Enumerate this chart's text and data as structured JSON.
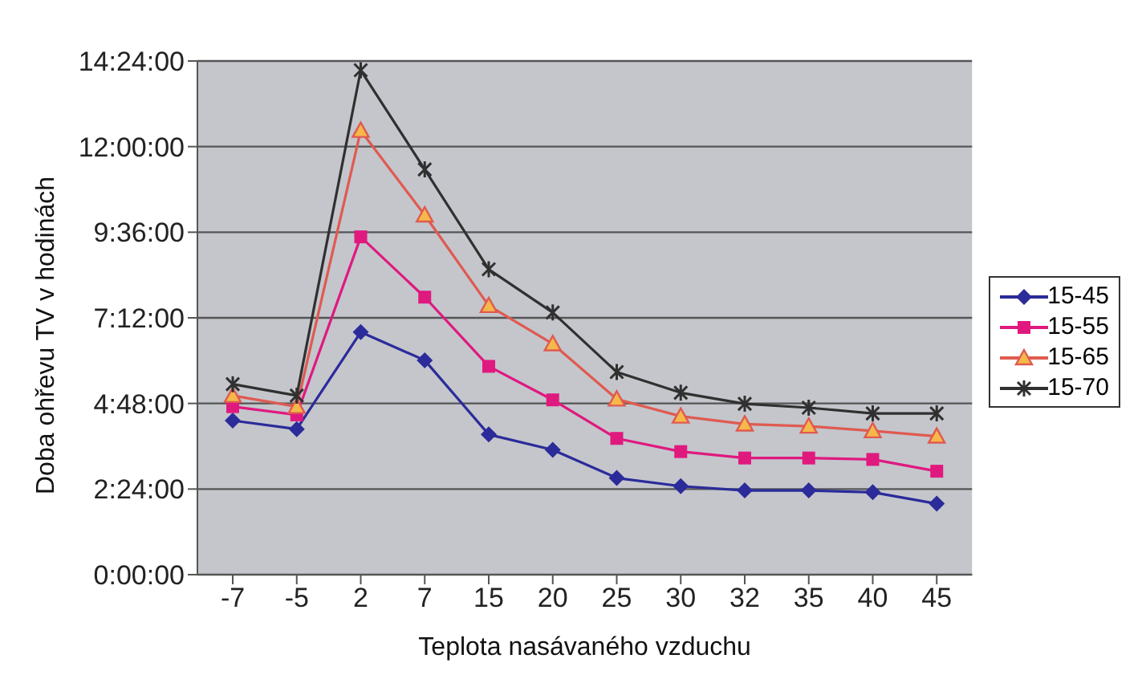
{
  "chart_data": {
    "type": "line",
    "xlabel": "Teplota nasávaného vzduchu",
    "ylabel": "Doba ohřevu TV  v hodinách",
    "categories": [
      "-7",
      "-5",
      "2",
      "7",
      "15",
      "20",
      "25",
      "30",
      "32",
      "35",
      "40",
      "45"
    ],
    "series": [
      {
        "name": "15-45",
        "color": "#2b2b9a",
        "marker": "diamond",
        "values": [
          4.32,
          4.08,
          6.8,
          6.01,
          3.93,
          3.5,
          2.71,
          2.48,
          2.36,
          2.36,
          2.31,
          1.99
        ]
      },
      {
        "name": "15-55",
        "color": "#e0197f",
        "marker": "square",
        "values": [
          4.71,
          4.48,
          9.47,
          7.78,
          5.84,
          4.9,
          3.82,
          3.45,
          3.27,
          3.27,
          3.23,
          2.9
        ]
      },
      {
        "name": "15-65",
        "color": "#e05a50",
        "marker": "triangle",
        "values": [
          5.02,
          4.71,
          12.45,
          10.08,
          7.54,
          6.47,
          4.92,
          4.44,
          4.22,
          4.16,
          4.03,
          3.88
        ]
      },
      {
        "name": "15-70",
        "color": "#303030",
        "marker": "cross",
        "values": [
          5.34,
          5.02,
          14.14,
          11.36,
          8.56,
          7.35,
          5.68,
          5.1,
          4.79,
          4.68,
          4.52,
          4.52
        ]
      }
    ],
    "ylim": [
      0,
      14.4
    ],
    "yticks": [
      {
        "value": 0,
        "label": "0:00:00"
      },
      {
        "value": 2.4,
        "label": "2:24:00"
      },
      {
        "value": 4.8,
        "label": "4:48:00"
      },
      {
        "value": 7.2,
        "label": "7:12:00"
      },
      {
        "value": 9.6,
        "label": "9:36:00"
      },
      {
        "value": 12,
        "label": "12:00:00"
      },
      {
        "value": 14.4,
        "label": "14:24:00"
      }
    ],
    "grid": "y",
    "legend": "right",
    "line_style": "solid"
  }
}
